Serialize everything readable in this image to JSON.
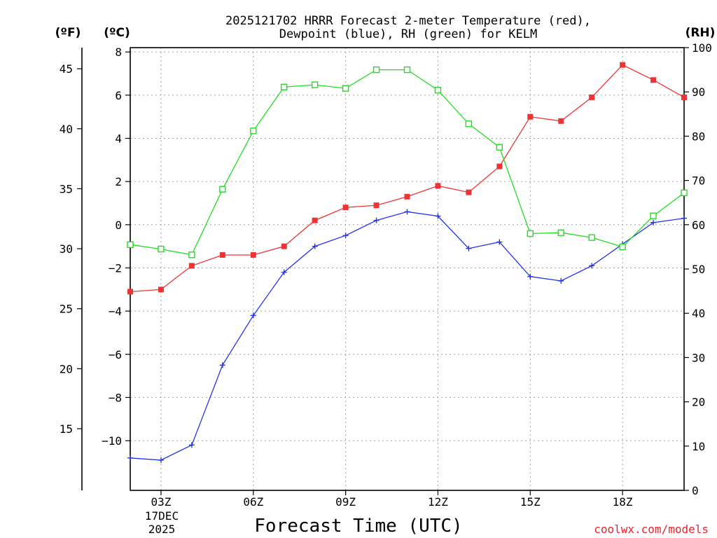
{
  "chart_data": {
    "type": "line",
    "title_line1": "2025121702 HRRR Forecast 2-meter Temperature (red),",
    "title_line2": "Dewpoint (blue), RH (green) for KELM",
    "xlabel": "Forecast Time (UTC)",
    "credit": "coolwx.com/models",
    "unit_f": "(ºF)",
    "unit_c": "(ºC)",
    "unit_rh": "(RH)",
    "x_hours": [
      2,
      3,
      4,
      5,
      6,
      7,
      8,
      9,
      10,
      11,
      12,
      13,
      14,
      15,
      16,
      17,
      18,
      19,
      20
    ],
    "xlim": [
      2,
      20
    ],
    "x_ticks": [
      {
        "hour": 3,
        "label": "03Z"
      },
      {
        "hour": 6,
        "label": "06Z"
      },
      {
        "hour": 9,
        "label": "09Z"
      },
      {
        "hour": 12,
        "label": "12Z"
      },
      {
        "hour": 15,
        "label": "15Z"
      },
      {
        "hour": 18,
        "label": "18Z"
      }
    ],
    "date_label_1": "17DEC",
    "date_label_2": "2025",
    "ylim_c": [
      -12.3,
      8.2
    ],
    "yticks_c": [
      {
        "value": 8,
        "label": "8"
      },
      {
        "value": 6,
        "label": "6"
      },
      {
        "value": 4,
        "label": "4"
      },
      {
        "value": 2,
        "label": "2"
      },
      {
        "value": 0,
        "label": "0"
      },
      {
        "value": -2,
        "label": "−2"
      },
      {
        "value": -4,
        "label": "−4"
      },
      {
        "value": -6,
        "label": "−6"
      },
      {
        "value": -8,
        "label": "−8"
      },
      {
        "value": -10,
        "label": "−10"
      }
    ],
    "yticks_f": [
      {
        "value": 45,
        "label": "45"
      },
      {
        "value": 40,
        "label": "40"
      },
      {
        "value": 35,
        "label": "35"
      },
      {
        "value": 30,
        "label": "30"
      },
      {
        "value": 25,
        "label": "25"
      },
      {
        "value": 20,
        "label": "20"
      },
      {
        "value": 15,
        "label": "15"
      }
    ],
    "ylim_rh": [
      0,
      100
    ],
    "yticks_rh": [
      {
        "value": 100,
        "label": "100"
      },
      {
        "value": 90,
        "label": "90"
      },
      {
        "value": 80,
        "label": "80"
      },
      {
        "value": 70,
        "label": "70"
      },
      {
        "value": 60,
        "label": "60"
      },
      {
        "value": 50,
        "label": "50"
      },
      {
        "value": 40,
        "label": "40"
      },
      {
        "value": 30,
        "label": "30"
      },
      {
        "value": 20,
        "label": "20"
      },
      {
        "value": 10,
        "label": "10"
      },
      {
        "value": 0,
        "label": "0"
      }
    ],
    "series": [
      {
        "name": "2-meter Temperature",
        "color": "#ee3333",
        "axis": "c",
        "marker": "filled-square",
        "values": [
          -3.1,
          -3.0,
          -1.9,
          -1.4,
          -1.4,
          -1.0,
          0.2,
          0.8,
          0.9,
          1.3,
          1.8,
          1.5,
          2.7,
          5.0,
          4.8,
          5.9,
          7.4,
          6.7,
          5.9
        ]
      },
      {
        "name": "Dewpoint",
        "color": "#2233ee",
        "axis": "c",
        "marker": "plus",
        "values": [
          -10.8,
          -10.9,
          -10.2,
          -6.5,
          -4.2,
          -2.2,
          -1.0,
          -0.5,
          0.2,
          0.6,
          0.4,
          -1.1,
          -0.8,
          -2.4,
          -2.6,
          -1.9,
          -0.9,
          0.1,
          0.3
        ]
      },
      {
        "name": "RH",
        "color": "#22dd22",
        "axis": "rh",
        "marker": "open-square",
        "values": [
          55.5,
          54.5,
          53.2,
          68.0,
          81.2,
          91.1,
          91.6,
          90.8,
          95.0,
          95.0,
          90.4,
          82.8,
          77.5,
          58.0,
          58.2,
          57.1,
          55.0,
          62.0,
          67.2
        ]
      }
    ]
  }
}
